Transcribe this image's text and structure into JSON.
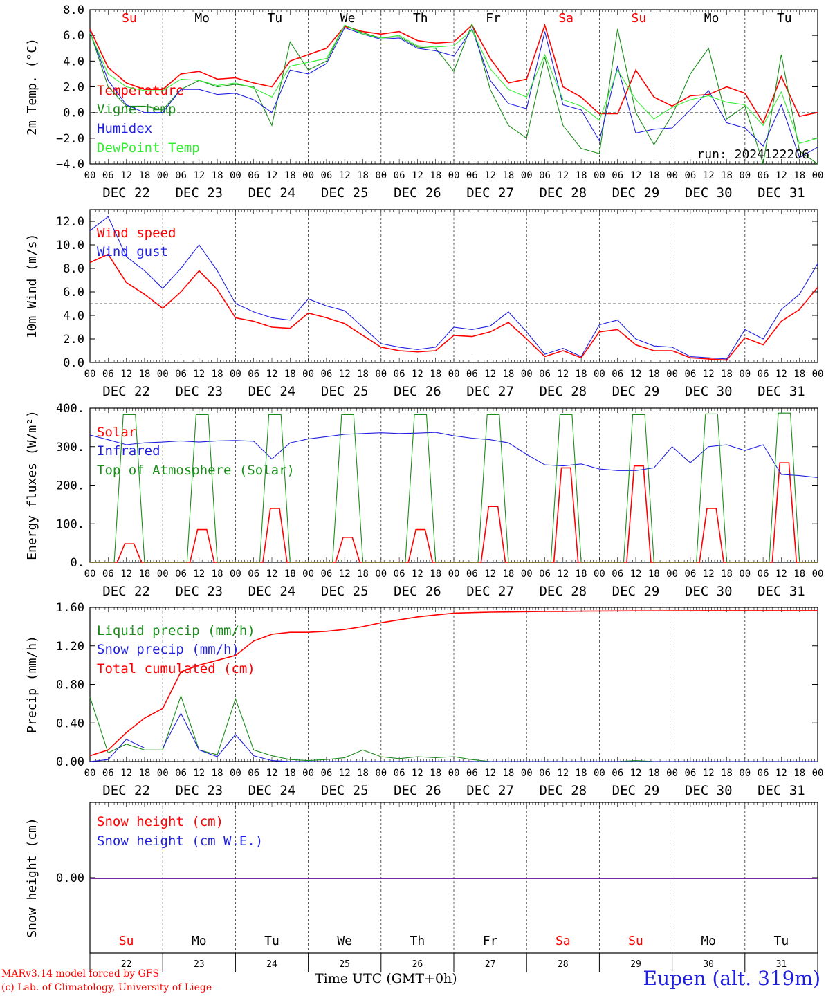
{
  "footer": {
    "model_line": "MARv3.14 model forced by GFS",
    "copyright_line": "(c) Lab. of Climatology, University of Liege",
    "time_label": "Time UTC (GMT+0h)",
    "station": "Eupen (alt. 319m)"
  },
  "colors": {
    "red": "#ff0000",
    "green": "#1a8c1a",
    "blue": "#1f1fe0",
    "lightgreen": "#33ee33",
    "grid": "#555555"
  },
  "chart_data": [
    {
      "id": "temperature",
      "type": "line",
      "ylabel": "2m Temp. (°C)",
      "ylim": [
        -4.0,
        8.0
      ],
      "yticks": [
        -4.0,
        -2.0,
        0.0,
        2.0,
        4.0,
        6.0,
        8.0
      ],
      "ytick_labels": [
        "−4.0",
        "−2.0",
        "0.0",
        "2.0",
        "4.0",
        "6.0",
        "8.0"
      ],
      "dashed_reference": 0.0,
      "day_labels_top": [
        "Su",
        "Mo",
        "Tu",
        "We",
        "Th",
        "Fr",
        "Sa",
        "Su",
        "Mo",
        "Tu"
      ],
      "day_label_colors": [
        "red",
        "black",
        "black",
        "black",
        "black",
        "black",
        "red",
        "red",
        "black",
        "black"
      ],
      "run_label": "run: 2024122206",
      "x_hours": [
        0,
        6,
        12,
        18,
        24,
        30,
        36,
        42,
        48,
        54,
        60,
        66,
        72,
        78,
        84,
        90,
        96,
        102,
        108,
        114,
        120,
        126,
        132,
        138,
        144,
        150,
        156,
        162,
        168,
        174,
        180,
        186,
        192,
        198,
        204,
        210,
        216,
        222,
        228,
        234,
        240
      ],
      "series": [
        {
          "name": "Temperature",
          "color": "red",
          "values": [
            6.5,
            3.5,
            2.3,
            1.8,
            1.8,
            3.0,
            3.2,
            2.6,
            2.7,
            2.3,
            2.0,
            4.0,
            4.5,
            5.0,
            6.7,
            6.3,
            6.1,
            6.3,
            5.6,
            5.4,
            5.5,
            6.8,
            4.2,
            2.3,
            2.6,
            6.8,
            2.0,
            1.2,
            -0.1,
            -0.1,
            3.3,
            1.2,
            0.5,
            1.3,
            1.4,
            2.0,
            1.5,
            -0.8,
            2.8,
            -0.3,
            0.0
          ]
        },
        {
          "name": "Vigne temp",
          "color": "green",
          "values": [
            6.3,
            2.0,
            0.5,
            0.5,
            0.2,
            1.8,
            2.5,
            2.0,
            2.2,
            2.0,
            -1.0,
            5.5,
            3.3,
            4.0,
            6.8,
            6.2,
            5.8,
            5.9,
            5.1,
            5.0,
            3.2,
            6.9,
            1.8,
            -1.0,
            -2.0,
            4.3,
            -1.0,
            -2.8,
            -3.2,
            6.5,
            0.0,
            -2.5,
            -0.2,
            3.0,
            5.0,
            -0.5,
            0.5,
            -4.0,
            4.5,
            -3.0,
            -4.0
          ]
        },
        {
          "name": "Humidex",
          "color": "blue",
          "values": [
            6.3,
            2.5,
            0.6,
            0.0,
            0.0,
            1.8,
            1.8,
            1.4,
            1.5,
            1.0,
            0.0,
            3.3,
            3.0,
            3.8,
            6.6,
            6.1,
            5.7,
            5.8,
            5.0,
            4.8,
            4.4,
            6.5,
            2.5,
            0.7,
            0.3,
            6.3,
            0.6,
            0.2,
            -2.2,
            3.6,
            -1.6,
            -1.3,
            -1.2,
            0.2,
            1.7,
            -0.8,
            -1.2,
            -2.6,
            0.6,
            -3.5,
            -2.7
          ]
        },
        {
          "name": "DewPoint Temp",
          "color": "lightgreen",
          "values": [
            6.2,
            3.0,
            2.0,
            1.7,
            1.7,
            2.6,
            2.5,
            2.1,
            2.3,
            1.9,
            1.2,
            3.6,
            3.9,
            4.2,
            6.8,
            6.1,
            5.8,
            6.0,
            5.2,
            5.1,
            5.2,
            6.4,
            3.4,
            1.8,
            1.2,
            4.5,
            1.0,
            0.5,
            -0.6,
            3.3,
            1.0,
            -0.5,
            0.4,
            1.0,
            1.3,
            0.8,
            0.6,
            -1.0,
            1.6,
            -2.4,
            -2.0
          ]
        }
      ]
    },
    {
      "id": "wind",
      "type": "line",
      "ylabel": "10m Wind (m/s)",
      "ylim": [
        0.0,
        13.0
      ],
      "yticks": [
        0.0,
        2.0,
        4.0,
        6.0,
        8.0,
        10.0,
        12.0
      ],
      "ytick_labels": [
        "0.0",
        "2.0",
        "4.0",
        "6.0",
        "8.0",
        "10.0",
        "12.0"
      ],
      "dashed_reference": 5.0,
      "x_hours": [
        0,
        6,
        12,
        18,
        24,
        30,
        36,
        42,
        48,
        54,
        60,
        66,
        72,
        78,
        84,
        90,
        96,
        102,
        108,
        114,
        120,
        126,
        132,
        138,
        144,
        150,
        156,
        162,
        168,
        174,
        180,
        186,
        192,
        198,
        204,
        210,
        216,
        222,
        228,
        234,
        240
      ],
      "series": [
        {
          "name": "Wind speed",
          "color": "red",
          "values": [
            8.5,
            9.2,
            6.8,
            5.8,
            4.6,
            6.0,
            7.8,
            6.2,
            3.8,
            3.5,
            3.0,
            2.9,
            4.2,
            3.8,
            3.3,
            2.3,
            1.3,
            1.0,
            0.9,
            1.0,
            2.3,
            2.2,
            2.6,
            3.4,
            2.0,
            0.5,
            1.0,
            0.4,
            2.6,
            2.8,
            1.5,
            1.0,
            1.0,
            0.4,
            0.3,
            0.2,
            2.1,
            1.5,
            3.5,
            4.5,
            6.4
          ]
        },
        {
          "name": "Wind gust",
          "color": "blue",
          "values": [
            11.2,
            12.4,
            9.0,
            7.8,
            6.3,
            8.0,
            10.0,
            7.8,
            5.0,
            4.3,
            3.8,
            3.6,
            5.4,
            4.8,
            4.4,
            3.0,
            1.6,
            1.3,
            1.1,
            1.3,
            3.0,
            2.8,
            3.1,
            4.3,
            2.6,
            0.7,
            1.2,
            0.5,
            3.2,
            3.6,
            2.0,
            1.4,
            1.3,
            0.5,
            0.4,
            0.3,
            2.8,
            2.0,
            4.5,
            5.8,
            8.4
          ]
        }
      ]
    },
    {
      "id": "energy",
      "type": "line",
      "ylabel": "Energy fluxes (W/m²)",
      "ylim": [
        0,
        400
      ],
      "yticks": [
        0,
        100,
        200,
        300,
        400
      ],
      "ytick_labels": [
        "0.",
        "100.",
        "200.",
        "300.",
        "400."
      ],
      "x_hours": [
        0,
        6,
        12,
        18,
        24,
        30,
        36,
        42,
        48,
        54,
        60,
        66,
        72,
        78,
        84,
        90,
        96,
        102,
        108,
        114,
        120,
        126,
        132,
        138,
        144,
        150,
        156,
        162,
        168,
        174,
        180,
        186,
        192,
        198,
        204,
        210,
        216,
        222,
        228,
        234,
        240
      ],
      "series": [
        {
          "name": "Solar",
          "color": "red",
          "peaks": [
            {
              "day": 0,
              "value": 48
            },
            {
              "day": 1,
              "value": 85
            },
            {
              "day": 2,
              "value": 140
            },
            {
              "day": 3,
              "value": 65
            },
            {
              "day": 4,
              "value": 85
            },
            {
              "day": 5,
              "value": 145
            },
            {
              "day": 6,
              "value": 245
            },
            {
              "day": 7,
              "value": 250
            },
            {
              "day": 8,
              "value": 140
            },
            {
              "day": 9,
              "value": 258
            }
          ]
        },
        {
          "name": "Infrared",
          "color": "blue",
          "values": [
            330,
            318,
            305,
            310,
            312,
            315,
            312,
            315,
            316,
            314,
            268,
            310,
            320,
            326,
            332,
            334,
            336,
            334,
            335,
            337,
            328,
            322,
            318,
            310,
            280,
            253,
            250,
            255,
            242,
            238,
            238,
            245,
            300,
            258,
            300,
            305,
            290,
            305,
            228,
            225,
            220
          ]
        },
        {
          "name": "Top of Atmosphere (Solar)",
          "color": "green",
          "peaks": [
            {
              "day": 0,
              "value": 383
            },
            {
              "day": 1,
              "value": 383
            },
            {
              "day": 2,
              "value": 383
            },
            {
              "day": 3,
              "value": 383
            },
            {
              "day": 4,
              "value": 383
            },
            {
              "day": 5,
              "value": 383
            },
            {
              "day": 6,
              "value": 383
            },
            {
              "day": 7,
              "value": 383
            },
            {
              "day": 8,
              "value": 385
            },
            {
              "day": 9,
              "value": 387
            }
          ]
        }
      ]
    },
    {
      "id": "precip",
      "type": "line",
      "ylabel": "Precip (mm/h)",
      "ylim": [
        0.0,
        1.6
      ],
      "yticks": [
        0.0,
        0.4,
        0.8,
        1.2,
        1.6
      ],
      "ytick_labels": [
        "0.00",
        "0.40",
        "0.80",
        "1.20",
        "1.60"
      ],
      "x_hours": [
        0,
        6,
        12,
        18,
        24,
        30,
        36,
        42,
        48,
        54,
        60,
        66,
        72,
        78,
        84,
        90,
        96,
        102,
        108,
        114,
        120,
        126,
        132,
        138,
        144,
        150,
        156,
        162,
        168,
        174,
        180,
        186,
        192,
        198,
        204,
        210,
        216,
        222,
        228,
        234,
        240
      ],
      "series": [
        {
          "name": "Liquid precip (mm/h)",
          "color": "green",
          "values": [
            0.67,
            0.09,
            0.18,
            0.12,
            0.12,
            0.68,
            0.12,
            0.07,
            0.65,
            0.12,
            0.06,
            0.02,
            0.01,
            0.02,
            0.04,
            0.12,
            0.05,
            0.03,
            0.05,
            0.04,
            0.05,
            0.02,
            0.0,
            0.0,
            0.0,
            0.0,
            0.0,
            0.0,
            0.0,
            0.0,
            0.01,
            0.0,
            0.0,
            0.0,
            0.0,
            0.0,
            0.0,
            0.0,
            0.0,
            0.0,
            0.0
          ]
        },
        {
          "name": "Snow precip (mm/h)",
          "color": "blue",
          "values": [
            0.0,
            0.02,
            0.23,
            0.14,
            0.14,
            0.5,
            0.12,
            0.05,
            0.28,
            0.06,
            0.01,
            0.0,
            0.0,
            0.0,
            0.0,
            0.0,
            0.0,
            0.0,
            0.0,
            0.0,
            0.0,
            0.0,
            0.0,
            0.0,
            0.0,
            0.0,
            0.0,
            0.0,
            0.0,
            0.0,
            0.0,
            0.0,
            0.0,
            0.0,
            0.0,
            0.0,
            0.0,
            0.0,
            0.0,
            0.0,
            0.0
          ]
        },
        {
          "name": "Total cumulated (cm)",
          "color": "red",
          "values": [
            0.06,
            0.12,
            0.3,
            0.45,
            0.55,
            0.93,
            1.0,
            1.05,
            1.1,
            1.25,
            1.32,
            1.34,
            1.34,
            1.35,
            1.37,
            1.4,
            1.44,
            1.47,
            1.5,
            1.52,
            1.54,
            1.545,
            1.55,
            1.552,
            1.555,
            1.557,
            1.558,
            1.56,
            1.561,
            1.562,
            1.563,
            1.563,
            1.564,
            1.564,
            1.565,
            1.565,
            1.565,
            1.565,
            1.565,
            1.565,
            1.565
          ]
        }
      ]
    },
    {
      "id": "snow",
      "type": "line",
      "ylabel": "Snow height (cm)",
      "yticks": [
        0.0
      ],
      "ytick_labels": [
        "0.00"
      ],
      "day_labels_bottom": [
        "Su",
        "Mo",
        "Tu",
        "We",
        "Th",
        "Fr",
        "Sa",
        "Su",
        "Mo",
        "Tu"
      ],
      "day_label_colors": [
        "red",
        "black",
        "black",
        "black",
        "black",
        "black",
        "red",
        "red",
        "black",
        "black"
      ],
      "day_numbers": [
        "22",
        "23",
        "24",
        "25",
        "26",
        "27",
        "28",
        "29",
        "30",
        "31"
      ],
      "series": [
        {
          "name": "Snow height (cm)",
          "color": "red",
          "values": [
            0.0,
            0.0
          ]
        },
        {
          "name": "Snow height (cm W.E.)",
          "color": "blue",
          "values": [
            0.0,
            0.0
          ]
        }
      ]
    }
  ],
  "x_axis": {
    "hour_labels": [
      "00",
      "06",
      "12",
      "18"
    ],
    "final_hour_label": "00",
    "date_labels": [
      "DEC 22",
      "DEC 23",
      "DEC 24",
      "DEC 25",
      "DEC 26",
      "DEC 27",
      "DEC 28",
      "DEC 29",
      "DEC 30",
      "DEC 31"
    ]
  }
}
